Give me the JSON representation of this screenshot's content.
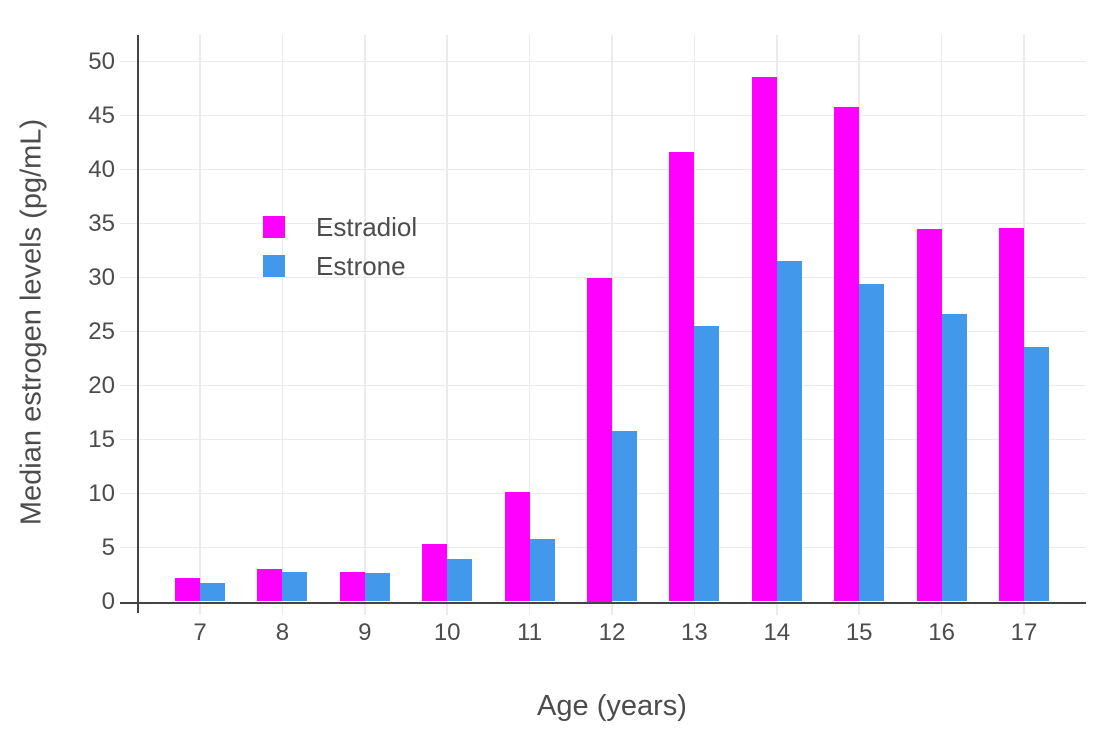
{
  "chart_data": {
    "type": "bar",
    "title": "",
    "xlabel": "Age (years)",
    "ylabel": "Median estrogen levels (pg/mL)",
    "categories": [
      7,
      8,
      9,
      10,
      11,
      12,
      13,
      14,
      15,
      16,
      17
    ],
    "series": [
      {
        "name": "Estradiol",
        "color": "#ff00ff",
        "values": [
          2.2,
          3.0,
          2.7,
          5.3,
          10.1,
          30.0,
          41.6,
          48.6,
          45.8,
          34.5,
          34.6
        ]
      },
      {
        "name": "Estrone",
        "color": "#4299ec",
        "values": [
          1.7,
          2.7,
          2.6,
          3.9,
          5.8,
          15.8,
          25.5,
          31.5,
          29.4,
          26.6,
          23.6
        ]
      }
    ],
    "ylim": [
      0,
      52.5
    ],
    "yticks": [
      0,
      5,
      10,
      15,
      20,
      25,
      30,
      35,
      40,
      45,
      50
    ],
    "grid": true,
    "legend_position": "inside-top-left"
  },
  "colors": {
    "grid": "#ebebeb",
    "axis": "#444444",
    "text": "#4c4c4c",
    "background": "#ffffff"
  }
}
